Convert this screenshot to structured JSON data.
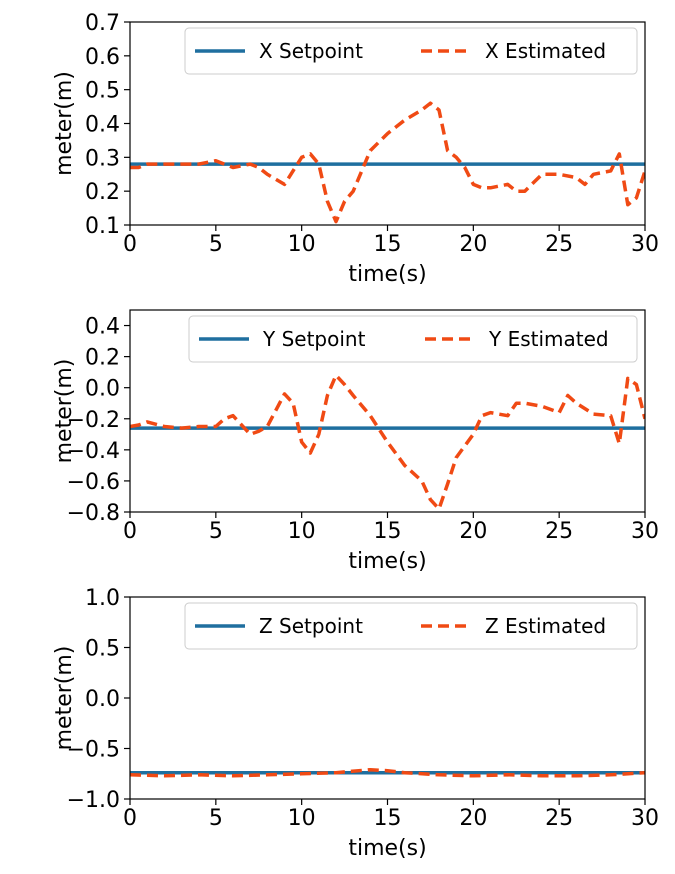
{
  "colors": {
    "setpoint": "#1f6f9f",
    "estimated": "#f04a14"
  },
  "chart_data": [
    {
      "type": "line",
      "title": "",
      "xlabel": "time(s)",
      "ylabel": "meter(m)",
      "xlim": [
        0,
        30
      ],
      "ylim": [
        0.1,
        0.7
      ],
      "xticks": [
        0,
        5,
        10,
        15,
        20,
        25,
        30
      ],
      "yticks": [
        0.1,
        0.2,
        0.3,
        0.4,
        0.5,
        0.6,
        0.7
      ],
      "ytick_labels": [
        "0.1",
        "0.2",
        "0.3",
        "0.4",
        "0.5",
        "0.6",
        "0.7"
      ],
      "grid": false,
      "legend": "top",
      "series": [
        {
          "name": "X Setpoint",
          "style": "solid",
          "x": [
            0,
            30
          ],
          "y": [
            0.28,
            0.28
          ]
        },
        {
          "name": "X Estimated",
          "style": "dashed",
          "x": [
            0,
            0.5,
            1,
            2,
            3,
            4,
            5,
            6,
            7,
            7.5,
            8,
            9,
            10,
            10.5,
            11,
            11.5,
            12,
            12.5,
            13,
            14,
            15,
            16,
            17,
            17.5,
            18,
            18.5,
            19,
            19.5,
            20,
            20.5,
            21,
            22,
            22.5,
            23,
            24,
            25,
            26,
            26.5,
            27,
            28,
            28.5,
            29,
            29.5,
            30
          ],
          "y": [
            0.27,
            0.27,
            0.28,
            0.28,
            0.28,
            0.28,
            0.29,
            0.27,
            0.28,
            0.27,
            0.25,
            0.22,
            0.3,
            0.31,
            0.28,
            0.17,
            0.11,
            0.17,
            0.2,
            0.32,
            0.37,
            0.41,
            0.44,
            0.46,
            0.44,
            0.32,
            0.3,
            0.27,
            0.22,
            0.21,
            0.21,
            0.22,
            0.2,
            0.2,
            0.25,
            0.25,
            0.24,
            0.22,
            0.25,
            0.26,
            0.31,
            0.16,
            0.18,
            0.26
          ]
        }
      ]
    },
    {
      "type": "line",
      "title": "",
      "xlabel": "time(s)",
      "ylabel": "meter(m)",
      "xlim": [
        0,
        30
      ],
      "ylim": [
        -0.8,
        0.5
      ],
      "xticks": [
        0,
        5,
        10,
        15,
        20,
        25,
        30
      ],
      "yticks": [
        -0.8,
        -0.6,
        -0.4,
        -0.2,
        0.0,
        0.2,
        0.4
      ],
      "ytick_labels": [
        "−0.8",
        "−0.6",
        "−0.4",
        "−0.2",
        "0.0",
        "0.2",
        "0.4"
      ],
      "grid": false,
      "legend": "top",
      "series": [
        {
          "name": "Y Setpoint",
          "style": "solid",
          "x": [
            0,
            30
          ],
          "y": [
            -0.26,
            -0.26
          ]
        },
        {
          "name": "Y Estimated",
          "style": "dashed",
          "x": [
            0,
            0.5,
            1,
            2,
            3,
            4,
            5,
            5.5,
            6,
            7,
            7.5,
            8,
            9,
            9.5,
            10,
            10.5,
            11,
            11.5,
            12,
            12.5,
            13,
            14,
            15,
            16,
            17,
            17.5,
            18,
            18.5,
            19,
            20,
            20.5,
            21,
            22,
            22.5,
            23,
            24,
            25,
            25.5,
            26,
            27,
            28,
            28.5,
            29,
            29.5,
            30
          ],
          "y": [
            -0.25,
            -0.24,
            -0.22,
            -0.25,
            -0.26,
            -0.25,
            -0.25,
            -0.2,
            -0.18,
            -0.3,
            -0.28,
            -0.25,
            -0.04,
            -0.1,
            -0.35,
            -0.42,
            -0.3,
            -0.05,
            0.08,
            0.02,
            -0.05,
            -0.18,
            -0.35,
            -0.5,
            -0.6,
            -0.72,
            -0.78,
            -0.62,
            -0.45,
            -0.3,
            -0.18,
            -0.16,
            -0.18,
            -0.1,
            -0.1,
            -0.12,
            -0.16,
            -0.05,
            -0.1,
            -0.17,
            -0.18,
            -0.36,
            0.06,
            0.02,
            -0.2
          ]
        }
      ]
    },
    {
      "type": "line",
      "title": "",
      "xlabel": "time(s)",
      "ylabel": "meter(m)",
      "xlim": [
        0,
        30
      ],
      "ylim": [
        -1.0,
        1.0
      ],
      "xticks": [
        0,
        5,
        10,
        15,
        20,
        25,
        30
      ],
      "yticks": [
        -1.0,
        -0.5,
        0.0,
        0.5,
        1.0
      ],
      "ytick_labels": [
        "−1.0",
        "−0.5",
        "0.0",
        "0.5",
        "1.0"
      ],
      "grid": false,
      "legend": "top",
      "series": [
        {
          "name": "Z Setpoint",
          "style": "solid",
          "x": [
            0,
            30
          ],
          "y": [
            -0.74,
            -0.74
          ]
        },
        {
          "name": "Z Estimated",
          "style": "dashed",
          "x": [
            0,
            2,
            4,
            6,
            8,
            10,
            12,
            14,
            15,
            16,
            18,
            20,
            22,
            24,
            26,
            28,
            30
          ],
          "y": [
            -0.76,
            -0.77,
            -0.76,
            -0.77,
            -0.76,
            -0.75,
            -0.74,
            -0.71,
            -0.72,
            -0.74,
            -0.76,
            -0.77,
            -0.76,
            -0.77,
            -0.77,
            -0.76,
            -0.74
          ]
        }
      ]
    }
  ]
}
